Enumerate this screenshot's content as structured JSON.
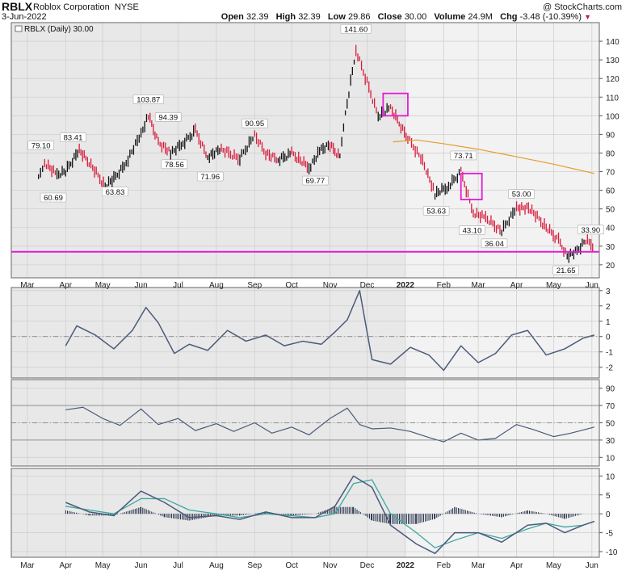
{
  "header": {
    "symbol": "RBLX",
    "company": "Roblox Corporation",
    "exchange": "NYSE",
    "date": "3-Jun-2022",
    "copyright": "@ StockCharts.com",
    "open_label": "Open",
    "open": "32.39",
    "high_label": "High",
    "high": "32.39",
    "low_label": "Low",
    "low": "29.86",
    "close_label": "Close",
    "close": "30.00",
    "volume_label": "Volume",
    "volume": "24.9M",
    "chg_label": "Chg",
    "chg": "-3.48 (-10.39%)"
  },
  "price_panel": {
    "legend": "RBLX (Daily) 30.00"
  },
  "colors": {
    "up": "#111111",
    "down": "#d81b3c",
    "ma": "#e89a2c",
    "magenta": "#e41ad8",
    "indicator": "#4a5a7a",
    "signal": "#3aa8a0",
    "panel_bg_2021": "#e8e8e8",
    "panel_bg_2022": "#f2f2f2"
  },
  "chart_data": [
    {
      "type": "line",
      "name": "price",
      "y_axis_ticks": [
        20,
        30,
        40,
        50,
        60,
        70,
        80,
        90,
        100,
        110,
        120,
        130,
        140
      ],
      "ylim": [
        13,
        150
      ],
      "x_tick_labels": [
        "Mar",
        "Apr",
        "May",
        "Jun",
        "Jul",
        "Aug",
        "Sep",
        "Oct",
        "Nov",
        "Dec",
        "2022",
        "Feb",
        "Mar",
        "Apr",
        "May",
        "Jun"
      ],
      "x": [
        "2021-03-10",
        "2021-03-15",
        "2021-03-25",
        "2021-04-01",
        "2021-04-12",
        "2021-04-20",
        "2021-05-03",
        "2021-05-10",
        "2021-05-20",
        "2021-06-01",
        "2021-06-07",
        "2021-06-15",
        "2021-06-25",
        "2021-07-05",
        "2021-07-15",
        "2021-07-25",
        "2021-08-05",
        "2021-08-20",
        "2021-09-01",
        "2021-09-10",
        "2021-09-20",
        "2021-10-01",
        "2021-10-15",
        "2021-10-25",
        "2021-11-01",
        "2021-11-09",
        "2021-11-12",
        "2021-11-22",
        "2021-12-01",
        "2021-12-10",
        "2021-12-20",
        "2022-01-03",
        "2022-01-15",
        "2022-01-25",
        "2022-02-05",
        "2022-02-15",
        "2022-02-25",
        "2022-03-07",
        "2022-03-20",
        "2022-04-01",
        "2022-04-12",
        "2022-04-25",
        "2022-05-05",
        "2022-05-12",
        "2022-05-20",
        "2022-05-27",
        "2022-06-03"
      ],
      "y": [
        66,
        75,
        68,
        70,
        82,
        75,
        62,
        66,
        75,
        90,
        100,
        86,
        80,
        85,
        92,
        78,
        82,
        77,
        90,
        80,
        76,
        80,
        72,
        82,
        84,
        78,
        95,
        135,
        118,
        100,
        104,
        88,
        76,
        58,
        62,
        70,
        48,
        45,
        38,
        51,
        50,
        40,
        33,
        25,
        27,
        33,
        30
      ],
      "annotations": [
        {
          "label": "79.10",
          "x": "2021-03-12",
          "y": 79.1
        },
        {
          "label": "60.69",
          "x": "2021-03-22",
          "y": 60.69
        },
        {
          "label": "83.41",
          "x": "2021-04-07",
          "y": 83.41
        },
        {
          "label": "63.83",
          "x": "2021-05-11",
          "y": 63.83
        },
        {
          "label": "103.87",
          "x": "2021-06-07",
          "y": 103.87
        },
        {
          "label": "94.39",
          "x": "2021-06-23",
          "y": 94.39
        },
        {
          "label": "78.56",
          "x": "2021-06-28",
          "y": 78.56
        },
        {
          "label": "71.96",
          "x": "2021-07-27",
          "y": 71.96
        },
        {
          "label": "90.95",
          "x": "2021-09-01",
          "y": 90.95
        },
        {
          "label": "69.77",
          "x": "2021-10-20",
          "y": 69.77
        },
        {
          "label": "141.60",
          "x": "2021-11-22",
          "y": 141.6
        },
        {
          "label": "73.71",
          "x": "2022-02-17",
          "y": 73.71
        },
        {
          "label": "53.63",
          "x": "2022-01-26",
          "y": 53.63
        },
        {
          "label": "43.10",
          "x": "2022-02-24",
          "y": 43.1
        },
        {
          "label": "53.00",
          "x": "2022-04-05",
          "y": 53.0
        },
        {
          "label": "36.04",
          "x": "2022-03-14",
          "y": 36.04
        },
        {
          "label": "21.65",
          "x": "2022-05-11",
          "y": 21.65
        },
        {
          "label": "33.90",
          "x": "2022-05-31",
          "y": 33.9
        }
      ],
      "moving_average": {
        "x": [
          "2021-12-22",
          "2022-01-10",
          "2022-02-01",
          "2022-03-01",
          "2022-04-01",
          "2022-05-01",
          "2022-06-03"
        ],
        "y": [
          86,
          87,
          85,
          82,
          78,
          74,
          69
        ]
      },
      "horizontal_line": 27,
      "highlight_boxes": [
        {
          "x": [
            "2021-12-14",
            "2022-01-03"
          ],
          "y": [
            100,
            112
          ]
        },
        {
          "x": [
            "2022-02-15",
            "2022-03-04"
          ],
          "y": [
            55,
            69
          ]
        }
      ]
    },
    {
      "type": "line",
      "name": "oscillator",
      "y_axis_ticks": [
        -2,
        -1,
        0,
        1,
        2,
        3
      ],
      "ylim": [
        -2.7,
        3.2
      ],
      "x": [
        "2021-04-01",
        "2021-04-10",
        "2021-04-25",
        "2021-05-10",
        "2021-05-25",
        "2021-06-05",
        "2021-06-15",
        "2021-06-28",
        "2021-07-10",
        "2021-07-25",
        "2021-08-10",
        "2021-08-25",
        "2021-09-10",
        "2021-09-25",
        "2021-10-10",
        "2021-10-25",
        "2021-11-05",
        "2021-11-15",
        "2021-11-25",
        "2021-12-05",
        "2021-12-20",
        "2022-01-05",
        "2022-01-20",
        "2022-02-01",
        "2022-02-15",
        "2022-03-01",
        "2022-03-15",
        "2022-03-28",
        "2022-04-10",
        "2022-04-25",
        "2022-05-10",
        "2022-05-25",
        "2022-06-03"
      ],
      "y": [
        -0.6,
        0.7,
        0.1,
        -0.8,
        0.4,
        1.9,
        0.9,
        -1.1,
        -0.5,
        -0.9,
        0.4,
        -0.3,
        0.1,
        -0.6,
        -0.3,
        -0.5,
        0.3,
        1.1,
        3.0,
        -1.5,
        -1.8,
        -0.7,
        -1.2,
        -2.2,
        -0.6,
        -1.7,
        -1.1,
        0.1,
        0.4,
        -1.2,
        -0.8,
        -0.1,
        0.1
      ]
    },
    {
      "type": "line",
      "name": "momentum",
      "y_axis_ticks": [
        10,
        30,
        50,
        70,
        90
      ],
      "ylim": [
        0,
        100
      ],
      "reference_lines": [
        30,
        50,
        70
      ],
      "x": [
        "2021-04-01",
        "2021-04-15",
        "2021-05-01",
        "2021-05-15",
        "2021-06-01",
        "2021-06-15",
        "2021-07-01",
        "2021-07-15",
        "2021-08-01",
        "2021-08-15",
        "2021-09-01",
        "2021-09-15",
        "2021-10-01",
        "2021-10-15",
        "2021-11-01",
        "2021-11-15",
        "2021-11-25",
        "2021-12-05",
        "2021-12-20",
        "2022-01-05",
        "2022-01-20",
        "2022-02-01",
        "2022-02-15",
        "2022-03-01",
        "2022-03-15",
        "2022-04-01",
        "2022-04-15",
        "2022-05-01",
        "2022-05-15",
        "2022-06-03"
      ],
      "y": [
        65,
        68,
        55,
        47,
        66,
        48,
        55,
        41,
        49,
        40,
        50,
        38,
        45,
        36,
        55,
        67,
        48,
        43,
        44,
        40,
        33,
        28,
        38,
        30,
        32,
        48,
        42,
        34,
        38,
        45
      ]
    },
    {
      "type": "line",
      "name": "macd",
      "y_axis_ticks": [
        -10,
        -5,
        0,
        5,
        10
      ],
      "ylim": [
        -11.5,
        12
      ],
      "x": [
        "2021-04-01",
        "2021-04-20",
        "2021-05-10",
        "2021-06-01",
        "2021-06-20",
        "2021-07-10",
        "2021-08-01",
        "2021-08-20",
        "2021-09-10",
        "2021-10-01",
        "2021-10-20",
        "2021-11-05",
        "2021-11-20",
        "2021-12-05",
        "2021-12-20",
        "2022-01-10",
        "2022-01-25",
        "2022-02-10",
        "2022-03-01",
        "2022-03-20",
        "2022-04-10",
        "2022-04-25",
        "2022-05-10",
        "2022-05-25",
        "2022-06-03"
      ],
      "y": [
        3,
        0.5,
        -0.5,
        6,
        3,
        -1,
        -0.5,
        -1.5,
        0.5,
        -1,
        -1,
        2,
        10,
        7,
        -3,
        -8,
        -10.5,
        -5,
        -5,
        -7.5,
        -3,
        -2.5,
        -5,
        -3,
        -2
      ],
      "signal": [
        2,
        1,
        0,
        4,
        4,
        1,
        0,
        -1,
        0,
        -0.5,
        -1,
        0,
        8,
        9,
        0,
        -5,
        -9,
        -7,
        -5,
        -6.5,
        -4,
        -2.5,
        -3.5,
        -3,
        -2
      ]
    }
  ]
}
